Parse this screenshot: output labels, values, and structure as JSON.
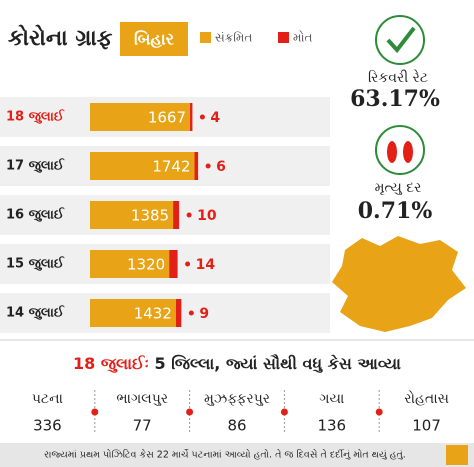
{
  "chart_data": {
    "type": "bar",
    "title": "કોરોના ગ્રાફ",
    "subtitle": "બિહાર",
    "categories": [
      "18 જુલાઈ",
      "17 જુલાઈ",
      "16 જુલાઈ",
      "15 જુલાઈ",
      "14 જુલાઈ"
    ],
    "series": [
      {
        "name": "સંક્રમિત",
        "color": "#e8a317",
        "values": [
          1667,
          1742,
          1385,
          1320,
          1432
        ]
      },
      {
        "name": "મોત",
        "color": "#e32018",
        "values": [
          4,
          6,
          10,
          14,
          9
        ]
      }
    ]
  },
  "stats": [
    {
      "label": "રિકવરી રેટ",
      "value": "63.17%"
    },
    {
      "label": "મૃત્યુ દર",
      "value": "0.71%"
    }
  ],
  "districts": {
    "title_date": "18 જુલાઈઃ",
    "title": "5 જિલ્લા, જ્યાં સૌથી વધુ કેસ આવ્યા",
    "items": [
      {
        "name": "પટના",
        "cases": "336"
      },
      {
        "name": "ભાગલપુર",
        "cases": "77"
      },
      {
        "name": "મુઝફ્ફરપુર",
        "cases": "86"
      },
      {
        "name": "ગયા",
        "cases": "136"
      },
      {
        "name": "રોહતાસ",
        "cases": "107"
      }
    ]
  },
  "footer": "રાજ્યમાં પ્રથમ પોઝિટિવ કેસ 22 માર્ચે પટનામાં આવ્યો હતો. તે જ દિવસે તે દર્દીનું મોત થયું હતું."
}
